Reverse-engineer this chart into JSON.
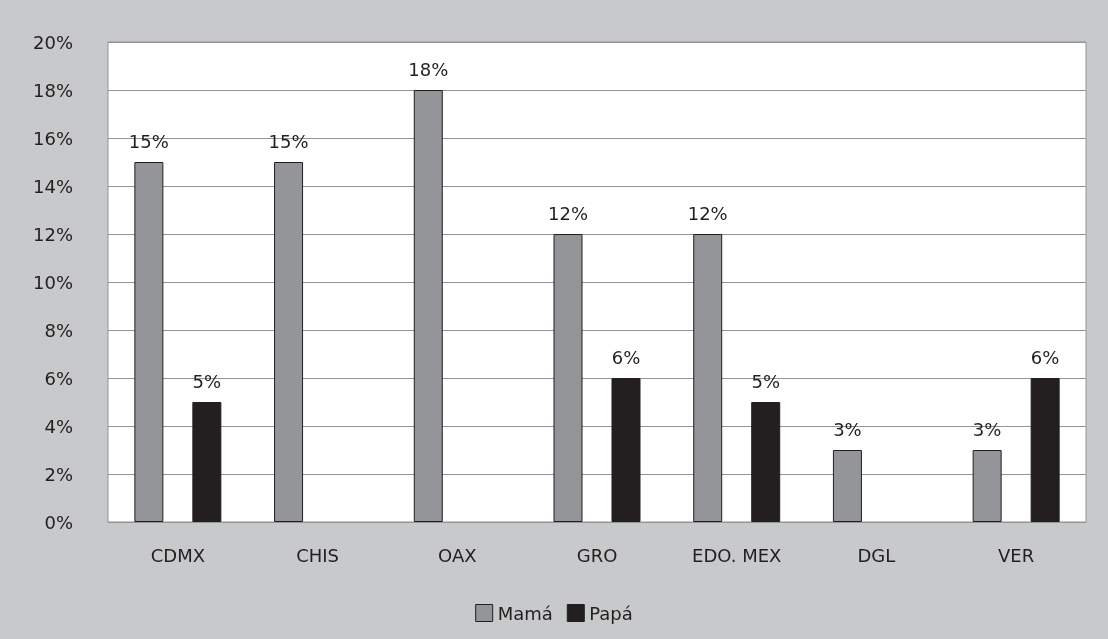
{
  "chart_data": {
    "type": "bar",
    "categories": [
      "CDMX",
      "CHIS",
      "OAX",
      "GRO",
      "EDO. MEX",
      "DGL",
      "VER"
    ],
    "series": [
      {
        "name": "Mamá",
        "color": "#939598",
        "values": [
          15,
          15,
          18,
          12,
          12,
          3,
          3
        ],
        "value_labels": [
          "15%",
          "15%",
          "18%",
          "12%",
          "12%",
          "3%",
          "3%"
        ]
      },
      {
        "name": "Papá",
        "color": "#231f20",
        "values": [
          5,
          null,
          null,
          6,
          5,
          null,
          6
        ],
        "value_labels": [
          "5%",
          null,
          null,
          "6%",
          "5%",
          null,
          "6%"
        ]
      }
    ],
    "ylim": [
      0,
      20
    ],
    "yticks": [
      {
        "value": 0,
        "label": "0%"
      },
      {
        "value": 2,
        "label": "2%"
      },
      {
        "value": 4,
        "label": "4%"
      },
      {
        "value": 6,
        "label": "6%"
      },
      {
        "value": 8,
        "label": "8%"
      },
      {
        "value": 10,
        "label": "10%"
      },
      {
        "value": 12,
        "label": "12%"
      },
      {
        "value": 14,
        "label": "14%"
      },
      {
        "value": 16,
        "label": "16%"
      },
      {
        "value": 18,
        "label": "18%"
      },
      {
        "value": 20,
        "label": "20%"
      }
    ],
    "grid": "y",
    "legend": "bottom"
  }
}
